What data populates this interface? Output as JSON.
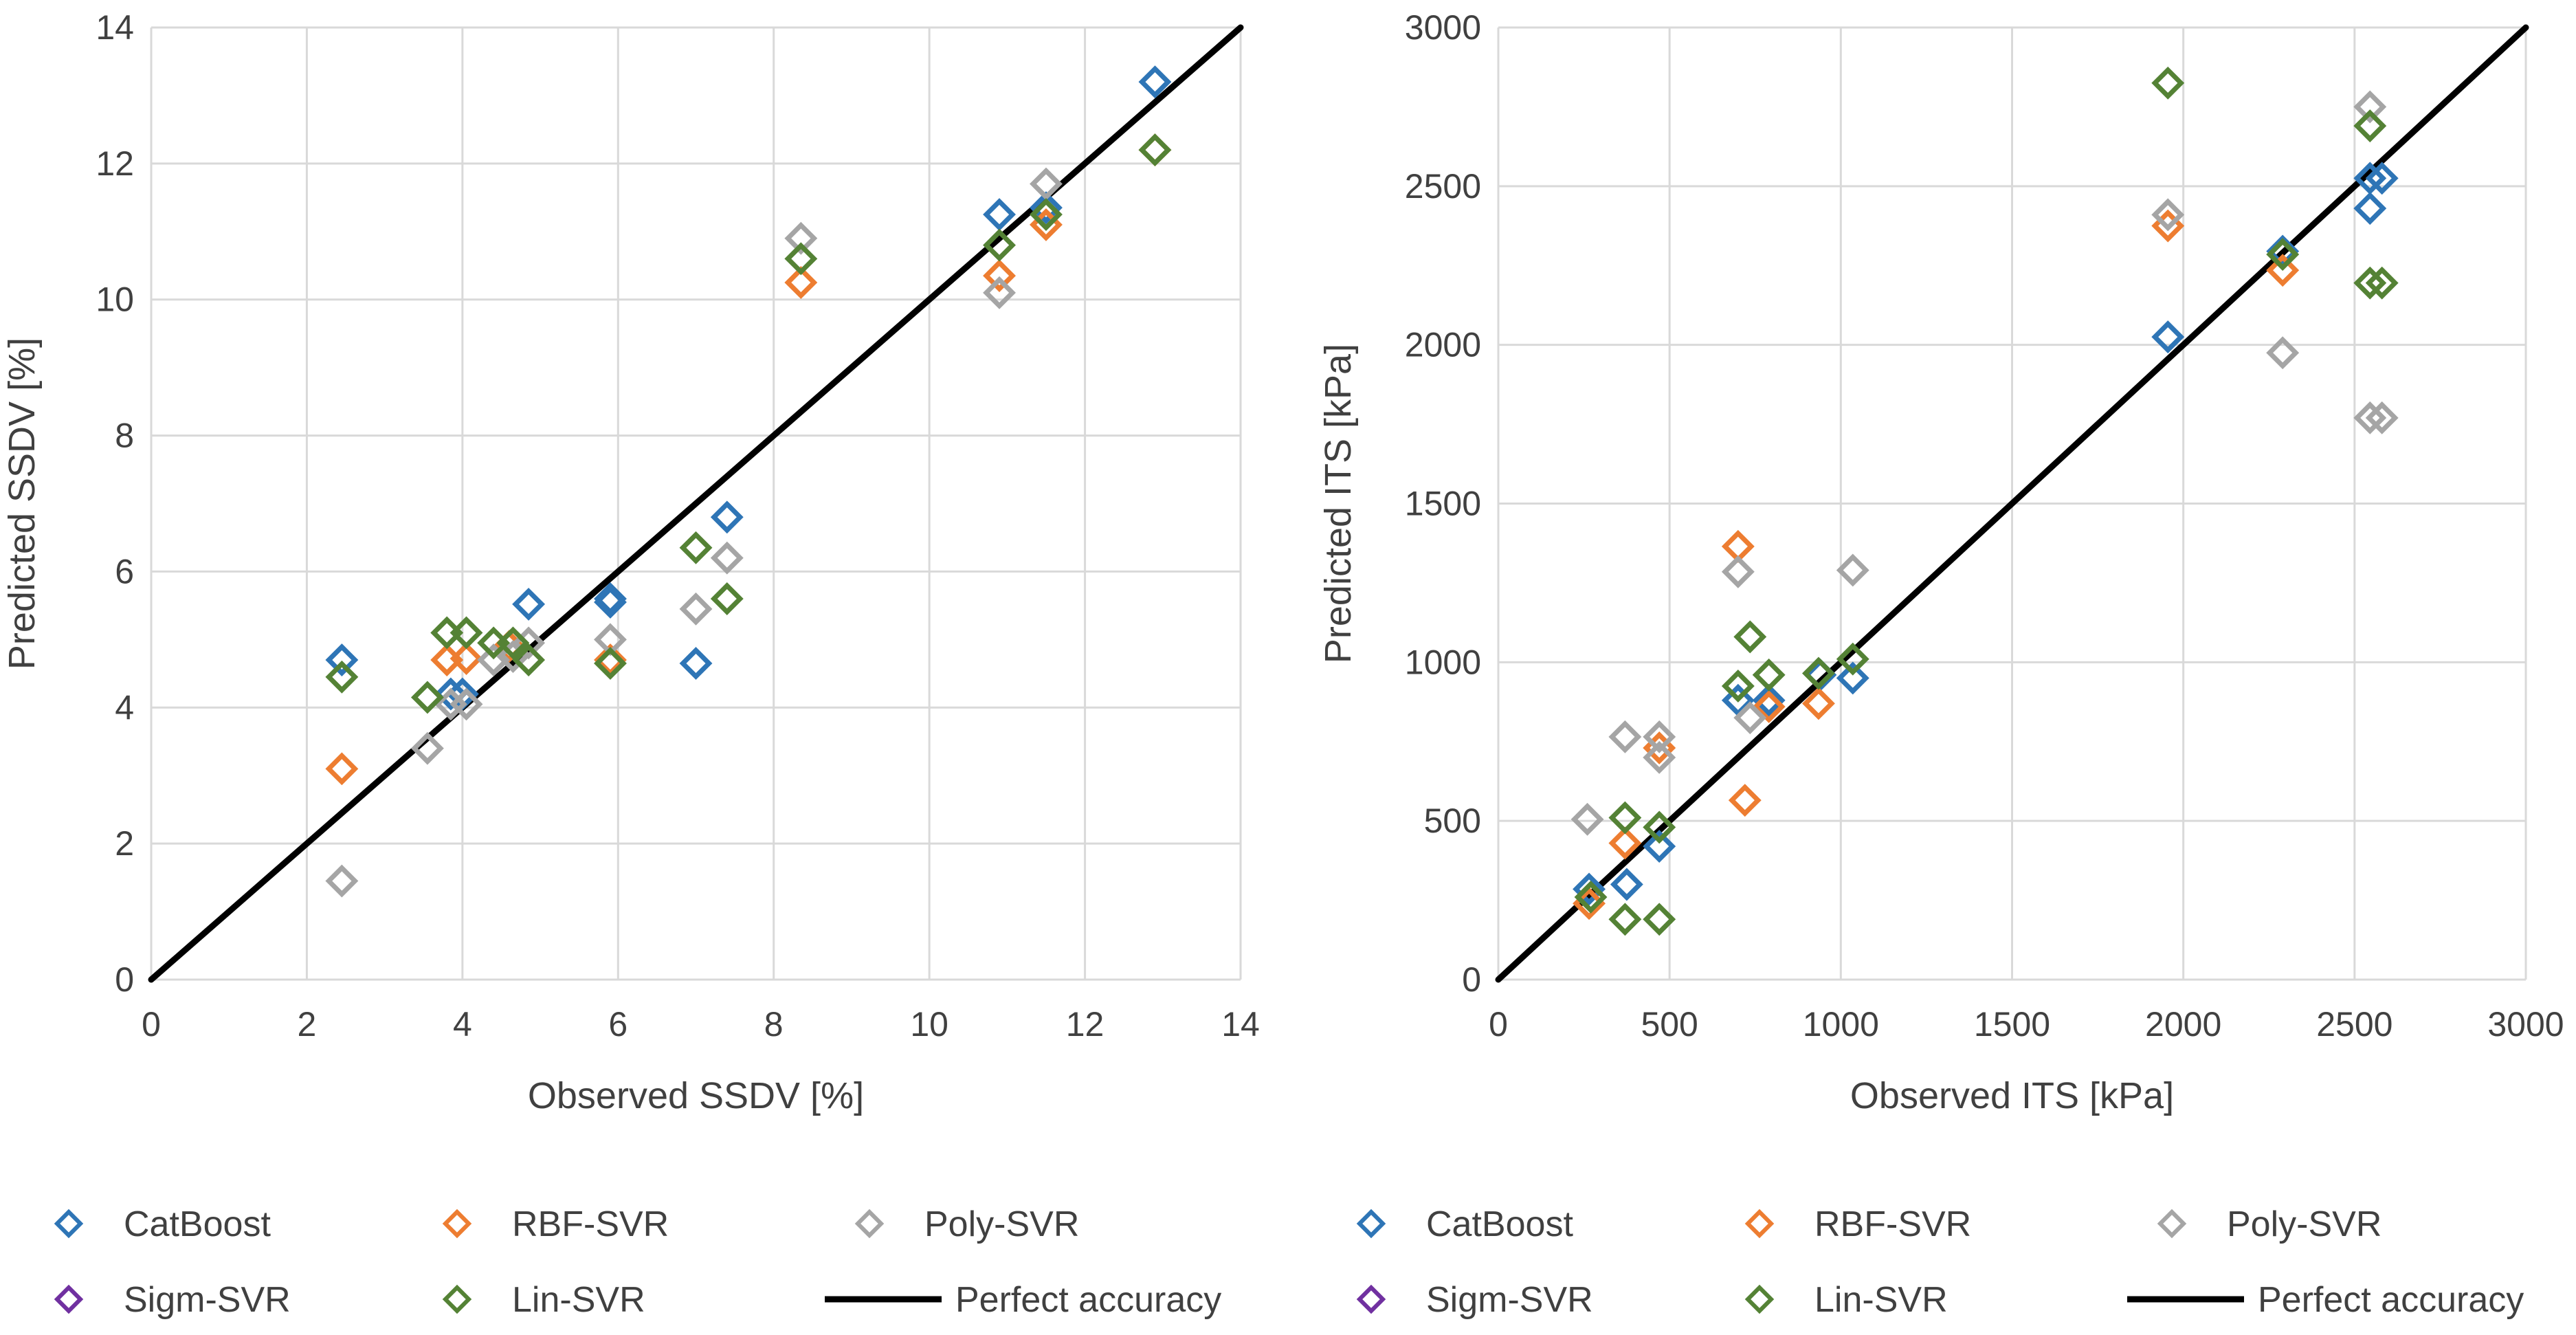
{
  "colors": {
    "CatBoost": "#2E75B6",
    "RBF-SVR": "#ED7D31",
    "Poly-SVR": "#A5A5A5",
    "Sigm-SVR": "#7030A0",
    "Lin-SVR": "#548235",
    "perfect": "#000000",
    "grid": "#D9D9D9",
    "axis": "#404040"
  },
  "chart_data": [
    {
      "type": "scatter",
      "title": "",
      "xlabel": "Observed SSDV [%]",
      "ylabel": "Predicted SSDV [%]",
      "xlim": [
        0,
        14
      ],
      "ylim": [
        0,
        14
      ],
      "xticks": [
        "0",
        "2",
        "4",
        "6",
        "8",
        "10",
        "12",
        "14"
      ],
      "yticks": [
        "0",
        "2",
        "4",
        "6",
        "8",
        "10",
        "12",
        "14"
      ],
      "grid": true,
      "legend_position": "bottom",
      "legend": [
        "CatBoost",
        "RBF-SVR",
        "Poly-SVR",
        "Sigm-SVR",
        "Lin-SVR",
        "Perfect accuracy"
      ],
      "perfect_line": [
        [
          0,
          0
        ],
        [
          14,
          14
        ]
      ],
      "series": [
        {
          "name": "CatBoost",
          "x": [
            2.45,
            3.85,
            4.0,
            4.85,
            5.9,
            5.9,
            7.0,
            7.4,
            10.9,
            11.5,
            12.9
          ],
          "y": [
            4.7,
            4.2,
            4.2,
            5.52,
            5.55,
            5.6,
            4.65,
            6.8,
            11.25,
            11.35,
            13.2
          ]
        },
        {
          "name": "RBF-SVR",
          "x": [
            2.45,
            3.8,
            4.05,
            4.6,
            5.9,
            8.35,
            10.9,
            11.5,
            12.9
          ],
          "y": [
            3.1,
            4.7,
            4.72,
            4.9,
            4.7,
            10.25,
            10.35,
            11.1,
            12.2
          ]
        },
        {
          "name": "Poly-SVR",
          "x": [
            2.45,
            3.55,
            3.85,
            4.05,
            4.4,
            4.65,
            4.85,
            5.9,
            7.0,
            7.4,
            8.35,
            10.9,
            11.5
          ],
          "y": [
            1.45,
            3.4,
            4.05,
            4.05,
            4.7,
            4.75,
            4.95,
            5.0,
            5.45,
            6.2,
            10.9,
            10.1,
            11.7
          ]
        },
        {
          "name": "Sigm-SVR",
          "x": [],
          "y": []
        },
        {
          "name": "Lin-SVR",
          "x": [
            2.45,
            3.55,
            3.8,
            4.05,
            4.4,
            4.65,
            4.85,
            5.9,
            7.0,
            7.4,
            8.35,
            10.9,
            11.5,
            12.9
          ],
          "y": [
            4.45,
            4.15,
            5.1,
            5.1,
            4.95,
            4.95,
            4.7,
            4.65,
            6.35,
            5.6,
            10.6,
            10.8,
            11.25,
            12.2
          ]
        }
      ]
    },
    {
      "type": "scatter",
      "title": "",
      "xlabel": "Observed ITS [kPa]",
      "ylabel": "Predicted ITS [kPa]",
      "xlim": [
        0,
        3000
      ],
      "ylim": [
        0,
        3000
      ],
      "xticks": [
        "0",
        "500",
        "1000",
        "1500",
        "2000",
        "2500",
        "3000"
      ],
      "yticks": [
        "0",
        "500",
        "1000",
        "1500",
        "2000",
        "2500",
        "3000"
      ],
      "grid": true,
      "legend_position": "bottom",
      "legend": [
        "CatBoost",
        "RBF-SVR",
        "Poly-SVR",
        "Sigm-SVR",
        "Lin-SVR",
        "Perfect accuracy"
      ],
      "perfect_line": [
        [
          0,
          0
        ],
        [
          3000,
          3000
        ]
      ],
      "series": [
        {
          "name": "CatBoost",
          "x": [
            265,
            375,
            470,
            700,
            790,
            940,
            1035,
            1955,
            2290,
            2545,
            2545,
            2580
          ],
          "y": [
            285,
            300,
            420,
            880,
            880,
            960,
            950,
            2025,
            2295,
            2525,
            2430,
            2525
          ]
        },
        {
          "name": "RBF-SVR",
          "x": [
            265,
            370,
            470,
            700,
            720,
            790,
            935,
            1955,
            2290
          ],
          "y": [
            240,
            430,
            730,
            1365,
            565,
            860,
            870,
            2375,
            2235
          ]
        },
        {
          "name": "Poly-SVR",
          "x": [
            260,
            370,
            470,
            470,
            700,
            735,
            1035,
            1955,
            2290,
            2545,
            2545,
            2580
          ],
          "y": [
            505,
            765,
            700,
            765,
            1285,
            825,
            1290,
            2410,
            1975,
            2750,
            1770,
            1770
          ]
        },
        {
          "name": "Sigm-SVR",
          "x": [],
          "y": []
        },
        {
          "name": "Lin-SVR",
          "x": [
            270,
            370,
            370,
            470,
            470,
            700,
            735,
            790,
            935,
            1035,
            1955,
            2290,
            2545,
            2545,
            2580
          ],
          "y": [
            260,
            510,
            190,
            480,
            190,
            925,
            1080,
            960,
            965,
            1010,
            2825,
            2285,
            2690,
            2195,
            2195
          ]
        }
      ]
    }
  ]
}
